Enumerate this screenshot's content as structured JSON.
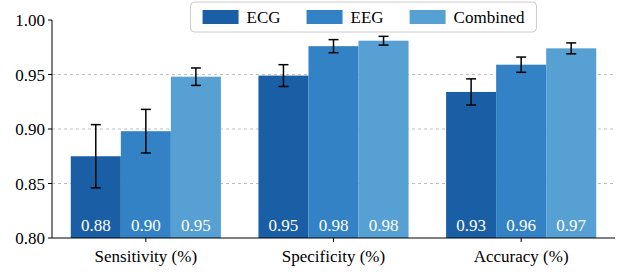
{
  "chart_data": {
    "type": "bar",
    "categories": [
      "Sensitivity (%)",
      "Specificity (%)",
      "Accuracy (%)"
    ],
    "series": [
      {
        "name": "ECG",
        "color": "#1a5ea6",
        "values": [
          0.875,
          0.949,
          0.934
        ],
        "value_labels": [
          "0.88",
          "0.95",
          "0.93"
        ],
        "errors": [
          0.029,
          0.01,
          0.012
        ]
      },
      {
        "name": "EEG",
        "color": "#3282c5",
        "values": [
          0.898,
          0.976,
          0.959
        ],
        "value_labels": [
          "0.90",
          "0.98",
          "0.96"
        ],
        "errors": [
          0.02,
          0.006,
          0.007
        ]
      },
      {
        "name": "Combined",
        "color": "#56a0d3",
        "values": [
          0.948,
          0.981,
          0.974
        ],
        "value_labels": [
          "0.95",
          "0.98",
          "0.97"
        ],
        "errors": [
          0.008,
          0.004,
          0.005
        ]
      }
    ],
    "ylim": [
      0.8,
      1.0
    ],
    "yticks": [
      {
        "value": 0.8,
        "label": "0.80"
      },
      0.85,
      {
        "value": 0.9,
        "label": "0.90"
      },
      0.95,
      {
        "value": 1.0,
        "label": "1.00"
      }
    ],
    "grid": true,
    "legend": "upper center",
    "data_labels": true
  }
}
